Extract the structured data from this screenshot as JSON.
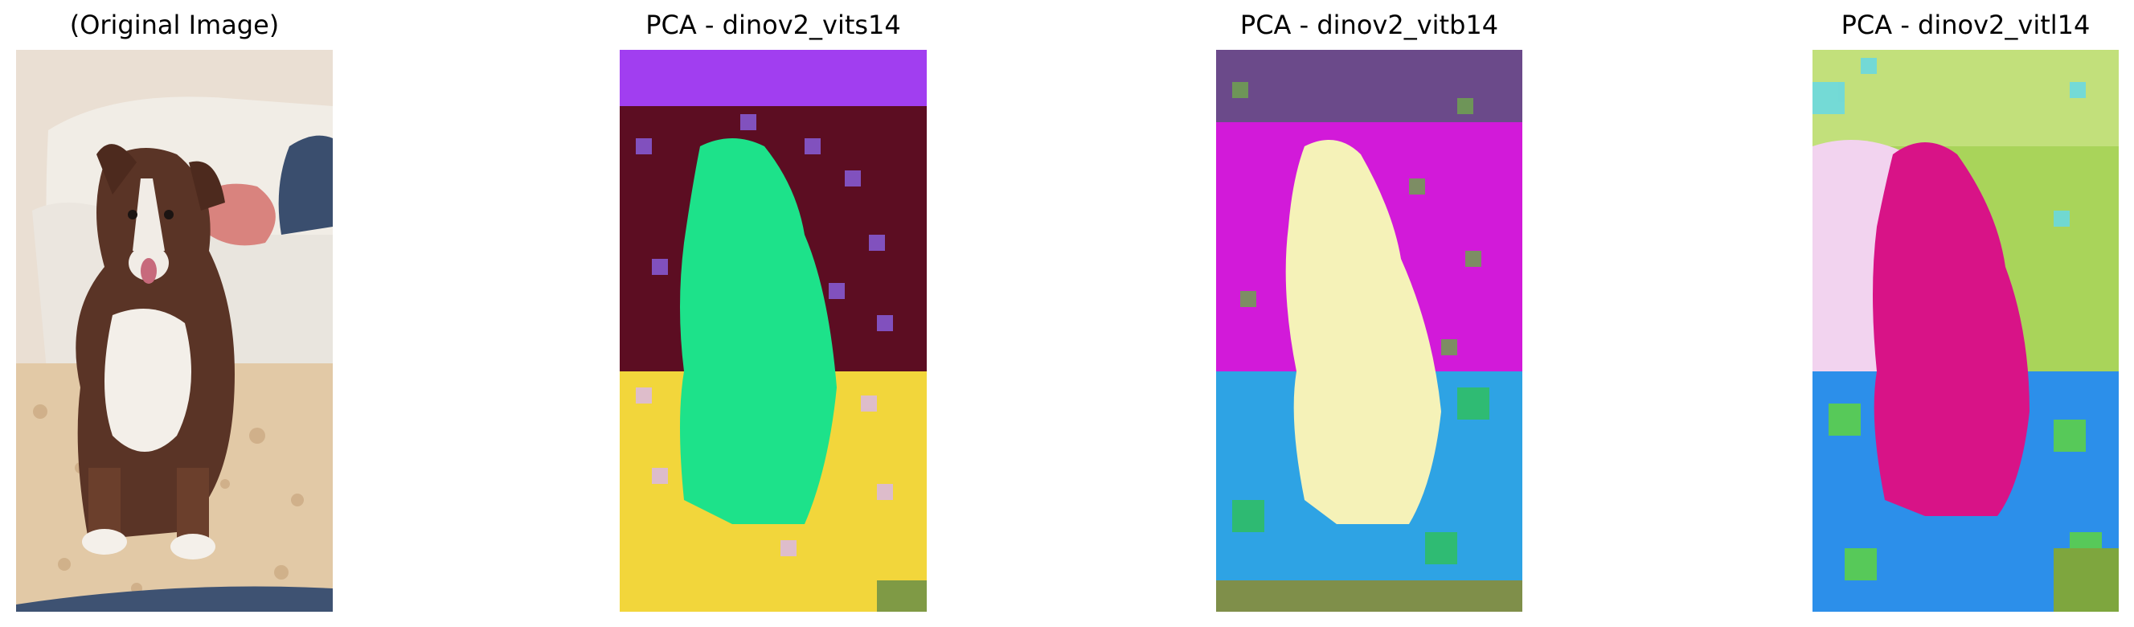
{
  "panels": [
    {
      "title": "(Original Image)",
      "image": "photo of a brown and white puppy sitting on a speckled floor in front of a white couch"
    },
    {
      "title": "PCA - dinov2_vits14",
      "image": "pixelated PCA map: green dog silhouette, purple/maroon background, yellow floor"
    },
    {
      "title": "PCA - dinov2_vitb14",
      "image": "pixelated PCA map: pale yellow dog silhouette, magenta background, blue/green floor"
    },
    {
      "title": "PCA - dinov2_vitl14",
      "image": "pixelated PCA map: magenta dog silhouette, green/pink background, blue floor"
    }
  ],
  "colors": {
    "background": "#ffffff"
  }
}
